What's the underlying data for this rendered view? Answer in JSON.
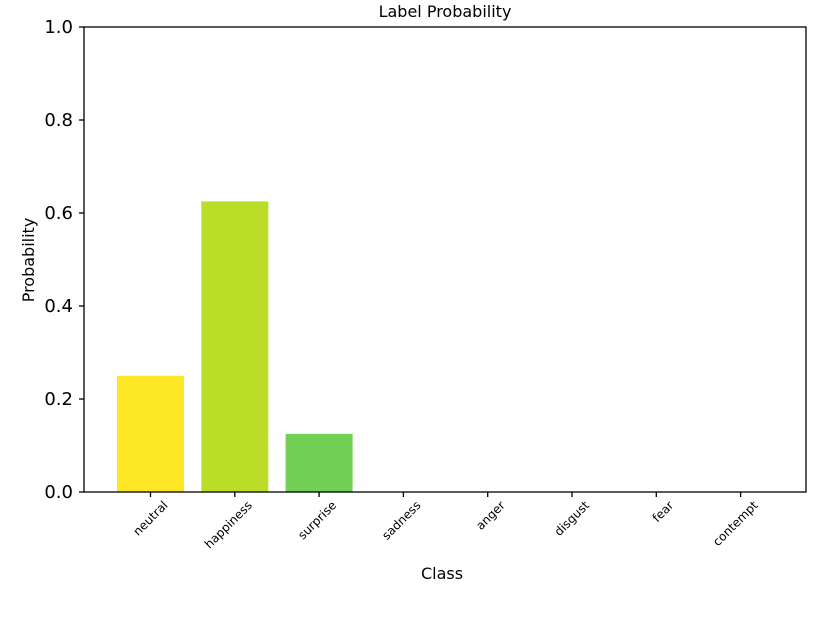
{
  "chart_data": {
    "type": "bar",
    "title": "Label Probability",
    "xlabel": "Class",
    "ylabel": "Probability",
    "categories": [
      "neutral",
      "happiness",
      "surprise",
      "sadness",
      "anger",
      "disgust",
      "fear",
      "contempt"
    ],
    "values": [
      0.25,
      0.625,
      0.125,
      0,
      0,
      0,
      0,
      0
    ],
    "colors": [
      "#fde725",
      "#bade28",
      "#73d056",
      "#4ac16d",
      "#2db27d",
      "#1f9e89",
      "#26828e",
      "#31688e"
    ],
    "ylim": [
      0,
      1.0
    ],
    "yticks": [
      "0.0",
      "0.2",
      "0.4",
      "0.6",
      "0.8",
      "1.0"
    ],
    "grid": false,
    "legend": "none"
  }
}
